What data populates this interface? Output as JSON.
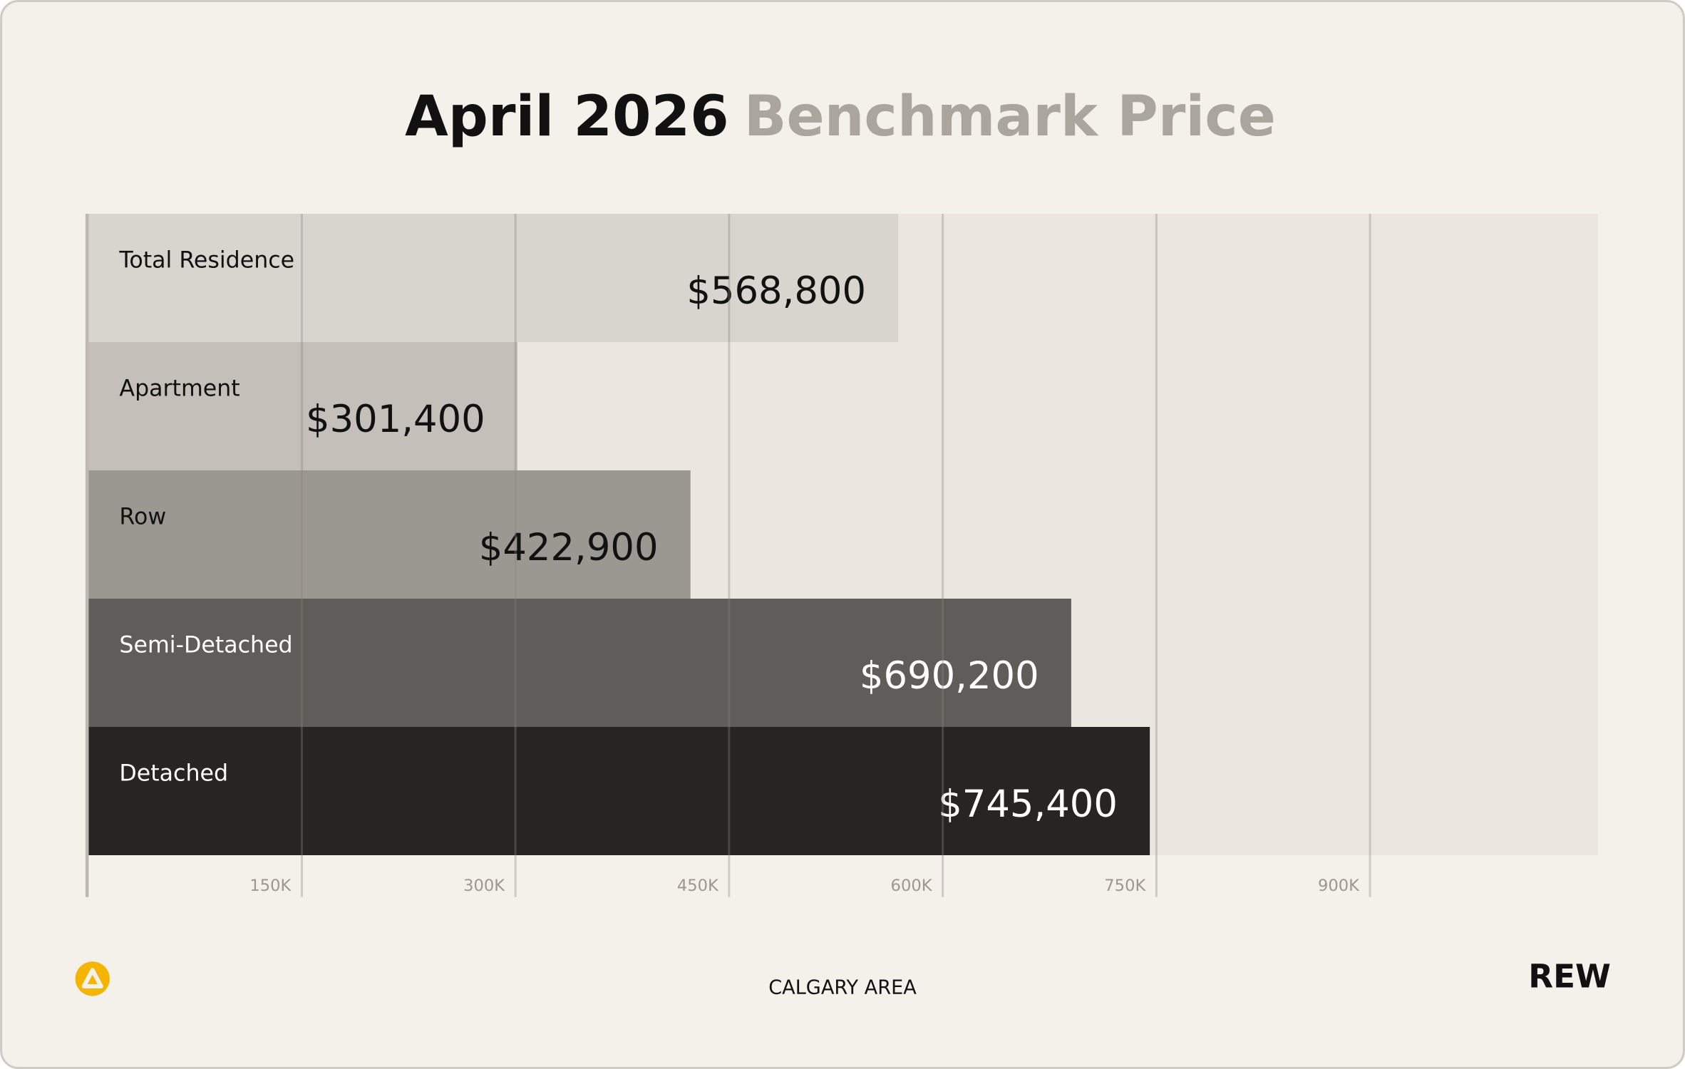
{
  "chart_data": {
    "type": "bar",
    "orientation": "horizontal",
    "title": "April 2026",
    "subtitle": "Benchmark Price",
    "categories": [
      "Total Residence",
      "Apartment",
      "Row",
      "Semi-Detached",
      "Detached"
    ],
    "values": [
      568800,
      301400,
      422900,
      690200,
      745400
    ],
    "value_labels": [
      "$568,800",
      "$301,400",
      "$422,900",
      "$690,200",
      "$745,400"
    ],
    "colors": [
      "#d8d4ce",
      "#c4bfb8",
      "#9b9891",
      "#5f5d59",
      "#262523"
    ],
    "xlim": [
      0,
      1060000
    ],
    "xticks": [
      {
        "value": 150000,
        "label": "150K"
      },
      {
        "value": 300000,
        "label": "300K"
      },
      {
        "value": 450000,
        "label": "450K"
      },
      {
        "value": 600000,
        "label": "600K"
      },
      {
        "value": 750000,
        "label": "750K"
      },
      {
        "value": 900000,
        "label": "900K"
      }
    ],
    "grid": true
  },
  "footer": {
    "region": "CALGARY AREA",
    "brand": "REW"
  }
}
